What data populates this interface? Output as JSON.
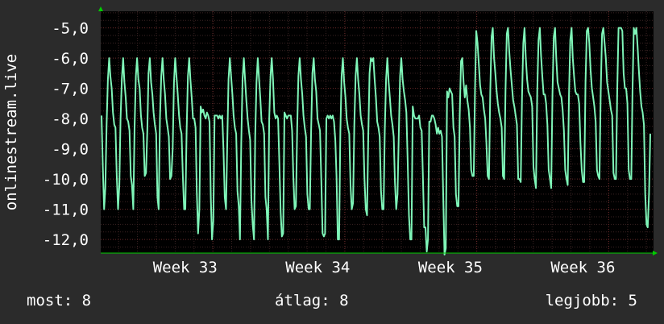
{
  "chart_data": {
    "type": "line",
    "ylabel": "onlinestream.live",
    "ylim": [
      -12.45,
      -4.45
    ],
    "y_ticks": [
      "-5,0",
      "-6,0",
      "-7,0",
      "-8,0",
      "-9,0",
      "-10,0",
      "-11,0",
      "-12,0"
    ],
    "y_tick_values": [
      -5,
      -6,
      -7,
      -8,
      -9,
      -10,
      -11,
      -12
    ],
    "x_ticks": [
      "Week 33",
      "Week 34",
      "Week 35",
      "Week 36"
    ],
    "x_tick_positions_weeks": [
      32.79,
      33.795,
      34.8,
      35.805
    ],
    "xlim_weeks": [
      32.15,
      36.34
    ],
    "grid": true,
    "colors": {
      "background": "#2b2b2b",
      "plot": "#000000",
      "line": "#7ff5b8",
      "grid": "#5a2a2a",
      "axis": "#00cc00"
    },
    "series": [
      {
        "values": [
          -7.9,
          -9.6,
          -11.0,
          -10.3,
          -8.2,
          -6.7,
          -6.0,
          -6.6,
          -7.0,
          -7.8,
          -8.2,
          -8.3,
          -9.9,
          -11.0,
          -10.2,
          -8.0,
          -6.7,
          -6.0,
          -6.8,
          -7.3,
          -8.0,
          -8.1,
          -8.4,
          -9.9,
          -10.2,
          -11.0,
          -8.3,
          -6.6,
          -6.0,
          -6.7,
          -7.0,
          -7.9,
          -8.3,
          -8.5,
          -9.9,
          -9.8,
          -8.4,
          -6.5,
          -6.0,
          -6.8,
          -7.2,
          -7.8,
          -8.2,
          -8.5,
          -10.6,
          -11.0,
          -8.0,
          -6.6,
          -6.0,
          -6.7,
          -7.2,
          -8.0,
          -8.3,
          -8.6,
          -10.0,
          -9.9,
          -9.0,
          -6.8,
          -6.0,
          -6.6,
          -7.2,
          -7.9,
          -8.3,
          -8.5,
          -9.9,
          -11.0,
          -11.0,
          -8.4,
          -6.6,
          -6.0,
          -6.7,
          -7.3,
          -8.0,
          -8.0,
          -8.3,
          -10.4,
          -11.8,
          -11.0,
          -7.6,
          -7.8,
          -7.7,
          -7.9,
          -8.0,
          -7.8,
          -7.9,
          -8.1,
          -10.6,
          -12.0,
          -11.4,
          -7.9,
          -7.9,
          -7.9,
          -8.0,
          -7.9,
          -8.0,
          -7.9,
          -9.0,
          -10.6,
          -11.0,
          -8.7,
          -6.7,
          -6.0,
          -6.6,
          -7.2,
          -7.9,
          -8.3,
          -8.5,
          -10.4,
          -10.9,
          -12.0,
          -8.8,
          -6.7,
          -6.0,
          -6.7,
          -7.4,
          -8.0,
          -8.4,
          -8.7,
          -10.7,
          -11.5,
          -12.0,
          -8.6,
          -6.8,
          -6.0,
          -6.7,
          -7.3,
          -8.1,
          -8.2,
          -8.5,
          -10.6,
          -11.0,
          -12.0,
          -8.0,
          -6.6,
          -6.0,
          -6.7,
          -7.8,
          -8.0,
          -7.9,
          -8.0,
          -9.5,
          -11.1,
          -11.9,
          -11.8,
          -7.8,
          -7.9,
          -8.0,
          -7.9,
          -7.9,
          -7.9,
          -8.4,
          -9.9,
          -11.0,
          -10.9,
          -8.3,
          -6.6,
          -6.0,
          -6.7,
          -7.2,
          -7.9,
          -8.3,
          -8.6,
          -10.5,
          -11.0,
          -11.0,
          -8.4,
          -6.5,
          -6.0,
          -6.7,
          -7.1,
          -8.0,
          -8.2,
          -8.4,
          -10.0,
          -11.8,
          -11.9,
          -11.8,
          -8.0,
          -7.9,
          -8.0,
          -7.9,
          -8.0,
          -7.9,
          -8.1,
          -8.7,
          -9.9,
          -12.0,
          -12.0,
          -8.4,
          -6.6,
          -6.0,
          -6.8,
          -7.3,
          -8.0,
          -8.3,
          -8.5,
          -10.2,
          -11.0,
          -10.8,
          -8.2,
          -6.6,
          -6.0,
          -6.7,
          -7.2,
          -7.9,
          -8.2,
          -8.4,
          -10.0,
          -11.0,
          -11.2,
          -8.6,
          -6.5,
          -6.0,
          -6.1,
          -6.0,
          -6.7,
          -7.3,
          -8.1,
          -8.3,
          -8.6,
          -10.4,
          -11.0,
          -11.0,
          -8.4,
          -6.7,
          -6.0,
          -6.8,
          -7.3,
          -7.9,
          -8.2,
          -8.6,
          -10.1,
          -11.0,
          -10.5,
          -8.5,
          -6.6,
          -6.0,
          -6.7,
          -7.1,
          -7.4,
          -7.8,
          -9.4,
          -11.2,
          -12.0,
          -12.0,
          -7.6,
          -7.9,
          -8.0,
          -8.0,
          -8.0,
          -7.9,
          -8.3,
          -8.4,
          -9.9,
          -11.6,
          -11.6,
          -12.4,
          -12.0,
          -8.1,
          -8.1,
          -7.9,
          -7.9,
          -8.0,
          -8.2,
          -8.5,
          -8.3,
          -8.5,
          -8.4,
          -8.6,
          -10.5,
          -12.5,
          -12.3,
          -7.1,
          -7.3,
          -7.0,
          -7.1,
          -7.2,
          -8.3,
          -8.6,
          -10.5,
          -10.9,
          -10.9,
          -7.9,
          -6.1,
          -6.0,
          -6.8,
          -7.3,
          -6.9,
          -7.4,
          -7.7,
          -8.3,
          -9.7,
          -9.9,
          -9.9,
          -7.0,
          -5.1,
          -5.5,
          -6.2,
          -6.9,
          -7.2,
          -7.3,
          -7.7,
          -8.0,
          -8.8,
          -9.9,
          -10.0,
          -7.1,
          -5.3,
          -5.0,
          -6.0,
          -6.5,
          -7.1,
          -7.5,
          -7.8,
          -8.0,
          -8.3,
          -9.9,
          -10.0,
          -7.1,
          -5.2,
          -5.0,
          -5.8,
          -6.4,
          -6.9,
          -7.4,
          -7.6,
          -7.9,
          -8.2,
          -10.0,
          -10.0,
          -10.1,
          -7.3,
          -5.5,
          -5.0,
          -6.0,
          -6.7,
          -7.1,
          -7.2,
          -7.3,
          -7.6,
          -9.6,
          -10.0,
          -10.3,
          -7.1,
          -5.4,
          -5.0,
          -5.9,
          -6.6,
          -7.2,
          -7.2,
          -7.5,
          -8.2,
          -9.7,
          -10.0,
          -10.3,
          -7.2,
          -5.3,
          -5.0,
          -6.0,
          -6.8,
          -7.0,
          -7.2,
          -7.3,
          -7.7,
          -8.4,
          -9.7,
          -10.0,
          -10.2,
          -7.2,
          -5.4,
          -5.0,
          -6.0,
          -6.6,
          -7.1,
          -7.2,
          -7.2,
          -7.5,
          -8.8,
          -9.7,
          -10.1,
          -10.1,
          -6.8,
          -5.1,
          -5.0,
          -5.5,
          -6.4,
          -7.0,
          -7.3,
          -7.6,
          -8.1,
          -9.7,
          -9.9,
          -10.0,
          -7.1,
          -5.2,
          -5.0,
          -5.5,
          -6.0,
          -6.8,
          -7.1,
          -7.4,
          -7.7,
          -7.9,
          -9.8,
          -10.0,
          -10.0,
          -7.0,
          -5.0,
          -5.0,
          -5.0,
          -5.1,
          -6.5,
          -7.0,
          -7.0,
          -7.5,
          -9.7,
          -10.0,
          -10.0,
          -7.1,
          -5.0,
          -5.2,
          -5.0,
          -5.6,
          -6.4,
          -7.1,
          -7.6,
          -7.8,
          -8.2,
          -10.5,
          -11.5,
          -11.6,
          -10.5,
          -8.5
        ]
      }
    ]
  },
  "footer": {
    "current": "most: 8",
    "average": "átlag: 8",
    "max": "legjobb: 5"
  }
}
